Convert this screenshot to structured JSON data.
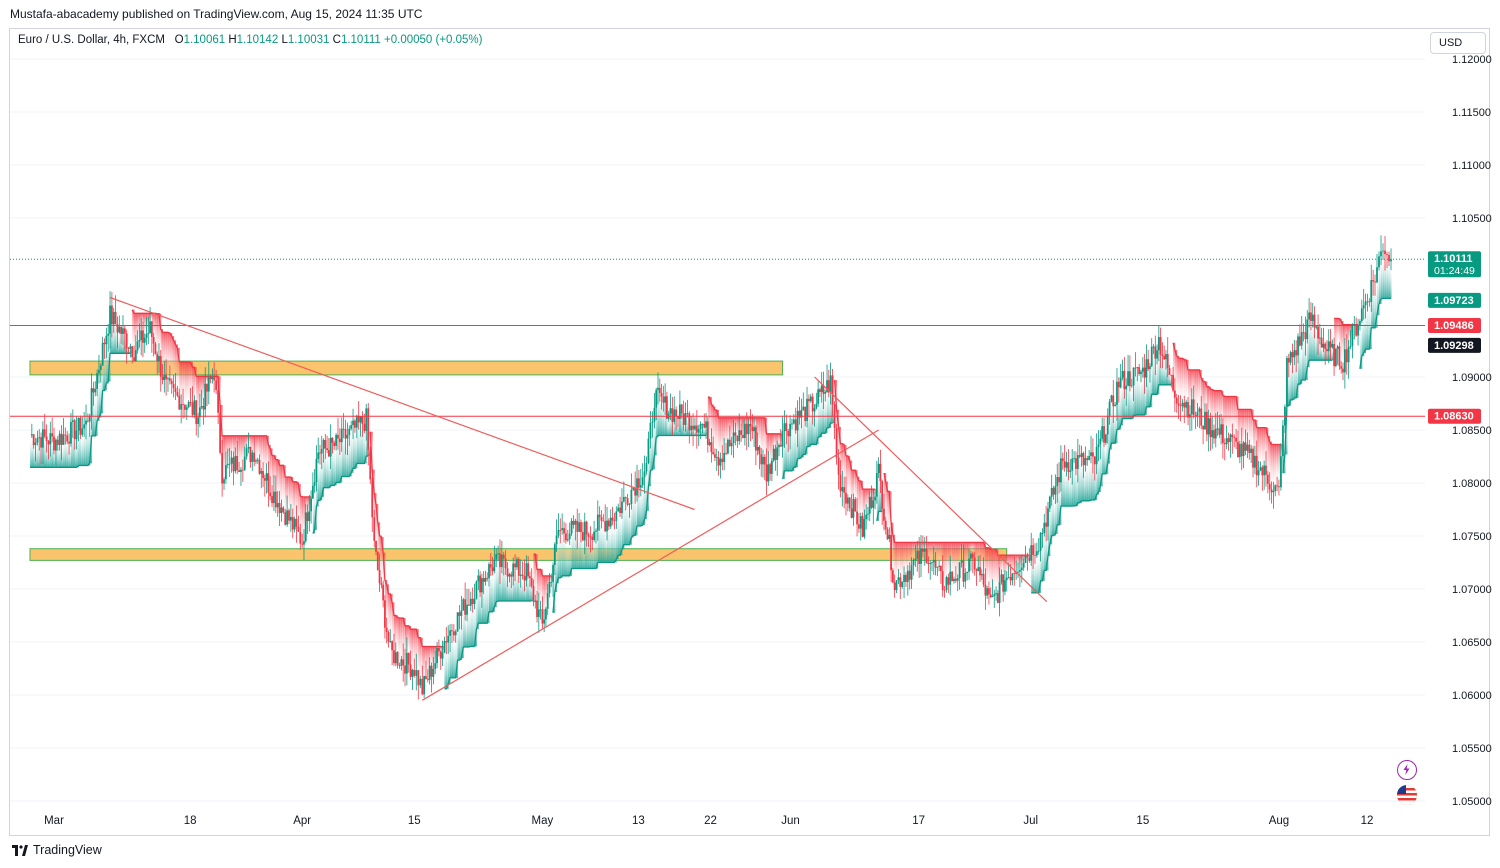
{
  "publisher_text": "Mustafa-abacademy published on TradingView.com, Aug 15, 2024 11:35 UTC",
  "symbol": {
    "name": "Euro / U.S. Dollar, 4h, FXCM",
    "o_label": "O",
    "o": "1.10061",
    "h_label": "H",
    "h": "1.10142",
    "l_label": "L",
    "l": "1.10031",
    "c_label": "C",
    "c": "1.10111",
    "change": "+0.00050 (+0.05%)"
  },
  "currency_button": "USD",
  "footer_brand": "TradingView",
  "colors": {
    "up": "#089981",
    "down": "#f23645",
    "zone_fill": "#f9c46b",
    "zone_border": "#4caf50",
    "level_line": "#f23645",
    "trendline": "#f05b5b",
    "grid": "#f0f3fa"
  },
  "chart_data": {
    "type": "candlestick",
    "symbol": "EURUSD",
    "timeframe": "4h",
    "y_axis": {
      "min": 1.05,
      "max": 1.12,
      "ticks": [
        "1.12000",
        "1.11500",
        "1.11000",
        "1.10500",
        "1.09000",
        "1.08500",
        "1.08000",
        "1.07500",
        "1.07000",
        "1.06500",
        "1.06000",
        "1.05500",
        "1.05000"
      ]
    },
    "x_axis": {
      "ticks": [
        "Mar",
        "18",
        "Apr",
        "15",
        "May",
        "13",
        "22",
        "Jun",
        "17",
        "Jul",
        "15",
        "Aug",
        "12"
      ]
    },
    "price_labels": [
      {
        "value": 1.10111,
        "text": "1.10111",
        "sub": "01:24:49",
        "color": "#089981"
      },
      {
        "value": 1.09723,
        "text": "1.09723",
        "color": "#089981"
      },
      {
        "value": 1.09486,
        "text": "1.09486",
        "color": "#f23645"
      },
      {
        "value": 1.09298,
        "text": "1.09298",
        "color": "#131722"
      },
      {
        "value": 1.0863,
        "text": "1.08630",
        "color": "#f23645"
      }
    ],
    "horizontal_levels": [
      1.09486,
      1.0863
    ],
    "last_price": 1.10111,
    "zones": [
      {
        "x_start": "Feb 27",
        "x_end": "May 31",
        "y_low": 1.0902,
        "y_high": 1.0915
      },
      {
        "x_start": "Feb 27",
        "x_end": "Jun 28",
        "y_low": 1.0727,
        "y_high": 1.0738
      }
    ],
    "trendlines": [
      {
        "from": [
          "Mar 8",
          1.0975
        ],
        "to": [
          "May 20",
          1.0775
        ]
      },
      {
        "from": [
          "Apr 16",
          1.0595
        ],
        "to": [
          "Jun 12",
          1.085
        ]
      },
      {
        "from": [
          "Jun 4",
          1.09
        ],
        "to": [
          "Jul 3",
          1.0688
        ]
      }
    ],
    "close_path": [
      [
        "Feb 27",
        1.0845
      ],
      [
        "Mar 1",
        1.084
      ],
      [
        "Mar 5",
        1.0855
      ],
      [
        "Mar 8",
        1.0958
      ],
      [
        "Mar 11",
        1.0925
      ],
      [
        "Mar 13",
        1.0945
      ],
      [
        "Mar 15",
        1.089
      ],
      [
        "Mar 19",
        1.0865
      ],
      [
        "Mar 21",
        1.0905
      ],
      [
        "Mar 22",
        1.081
      ],
      [
        "Mar 26",
        1.083
      ],
      [
        "Mar 28",
        1.0795
      ],
      [
        "Apr 1",
        1.0745
      ],
      [
        "Apr 3",
        1.083
      ],
      [
        "Apr 5",
        1.0835
      ],
      [
        "Apr 9",
        1.086
      ],
      [
        "Apr 10",
        1.074
      ],
      [
        "Apr 12",
        1.064
      ],
      [
        "Apr 15",
        1.0625
      ],
      [
        "Apr 16",
        1.0605
      ],
      [
        "Apr 19",
        1.0655
      ],
      [
        "Apr 23",
        1.0705
      ],
      [
        "Apr 25",
        1.0725
      ],
      [
        "Apr 29",
        1.0715
      ],
      [
        "May 1",
        1.0665
      ],
      [
        "May 3",
        1.0755
      ],
      [
        "May 7",
        1.0755
      ],
      [
        "May 10",
        1.077
      ],
      [
        "May 14",
        1.0815
      ],
      [
        "May 15",
        1.0882
      ],
      [
        "May 17",
        1.0868
      ],
      [
        "May 21",
        1.0855
      ],
      [
        "May 23",
        1.0825
      ],
      [
        "May 27",
        1.0855
      ],
      [
        "May 29",
        1.0808
      ],
      [
        "May 31",
        1.085
      ],
      [
        "Jun 4",
        1.0875
      ],
      [
        "Jun 6",
        1.0895
      ],
      [
        "Jun 7",
        1.0805
      ],
      [
        "Jun 10",
        1.0755
      ],
      [
        "Jun 12",
        1.081
      ],
      [
        "Jun 14",
        1.0705
      ],
      [
        "Jun 18",
        1.0735
      ],
      [
        "Jun 20",
        1.0705
      ],
      [
        "Jun 24",
        1.0725
      ],
      [
        "Jun 26",
        1.0685
      ],
      [
        "Jun 28",
        1.0712
      ],
      [
        "Jul 2",
        1.0745
      ],
      [
        "Jul 5",
        1.082
      ],
      [
        "Jul 9",
        1.082
      ],
      [
        "Jul 12",
        1.0895
      ],
      [
        "Jul 15",
        1.0905
      ],
      [
        "Jul 17",
        1.0935
      ],
      [
        "Jul 19",
        1.0885
      ],
      [
        "Jul 23",
        1.0855
      ],
      [
        "Jul 25",
        1.0845
      ],
      [
        "Jul 29",
        1.082
      ],
      [
        "Aug 1",
        1.079
      ],
      [
        "Aug 2",
        1.091
      ],
      [
        "Aug 5",
        1.0955
      ],
      [
        "Aug 7",
        1.0925
      ],
      [
        "Aug 9",
        1.0915
      ],
      [
        "Aug 13",
        1.0995
      ],
      [
        "Aug 14",
        1.1025
      ],
      [
        "Aug 15",
        1.1011
      ]
    ]
  }
}
